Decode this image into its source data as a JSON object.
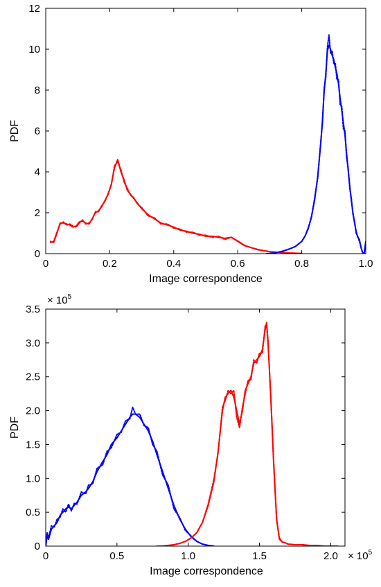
{
  "chart_data": [
    {
      "type": "line",
      "title": "",
      "xlabel": "Image correspondence",
      "ylabel": "PDF",
      "xlim": [
        0,
        1.0
      ],
      "ylim": [
        0,
        12
      ],
      "xticks": [
        0,
        0.2,
        0.4,
        0.6,
        0.8,
        1.0
      ],
      "xtick_labels": [
        "0",
        "0.2",
        "0.4",
        "0.6",
        "0.8",
        "1.0"
      ],
      "yticks": [
        0,
        2,
        4,
        6,
        8,
        10,
        12
      ],
      "ytick_labels": [
        "0",
        "2",
        "4",
        "6",
        "8",
        "10",
        "12"
      ],
      "multiplier": "",
      "grid": false,
      "series": [
        {
          "color": "#ff0000",
          "style": "solid",
          "x": [
            0.015,
            0.025,
            0.035,
            0.045,
            0.055,
            0.065,
            0.075,
            0.085,
            0.095,
            0.105,
            0.115,
            0.125,
            0.135,
            0.145,
            0.155,
            0.165,
            0.175,
            0.185,
            0.195,
            0.205,
            0.215,
            0.225,
            0.235,
            0.245,
            0.255,
            0.265,
            0.275,
            0.285,
            0.3,
            0.32,
            0.34,
            0.36,
            0.38,
            0.4,
            0.42,
            0.44,
            0.46,
            0.48,
            0.5,
            0.52,
            0.54,
            0.56,
            0.58,
            0.6,
            0.62,
            0.64,
            0.66,
            0.68,
            0.7,
            0.72,
            0.74,
            0.76,
            0.78,
            0.8
          ],
          "y": [
            0.6,
            0.55,
            1.0,
            1.5,
            1.5,
            1.45,
            1.4,
            1.3,
            1.35,
            1.55,
            1.6,
            1.5,
            1.45,
            1.7,
            2.0,
            2.1,
            2.3,
            2.6,
            2.9,
            3.4,
            4.2,
            4.6,
            4.0,
            3.6,
            3.1,
            2.9,
            2.7,
            2.5,
            2.2,
            1.9,
            1.7,
            1.5,
            1.4,
            1.3,
            1.15,
            1.1,
            1.0,
            0.95,
            0.85,
            0.85,
            0.8,
            0.75,
            0.8,
            0.6,
            0.4,
            0.3,
            0.2,
            0.15,
            0.1,
            0.07,
            0.05,
            0.03,
            0.02,
            0.01
          ]
        },
        {
          "color": "#ff0000",
          "style": "dashed",
          "x": [
            0.015,
            0.025,
            0.035,
            0.045,
            0.055,
            0.065,
            0.075,
            0.085,
            0.095,
            0.105,
            0.115,
            0.125,
            0.135,
            0.145,
            0.155,
            0.165,
            0.175,
            0.185,
            0.195,
            0.205,
            0.215,
            0.225,
            0.235,
            0.245,
            0.255,
            0.265,
            0.275,
            0.285,
            0.3,
            0.32,
            0.34,
            0.36,
            0.38,
            0.4,
            0.42,
            0.44,
            0.46,
            0.48,
            0.5,
            0.52,
            0.54,
            0.56,
            0.58,
            0.6,
            0.62,
            0.64,
            0.66,
            0.68,
            0.7,
            0.72,
            0.74,
            0.76,
            0.78,
            0.8
          ],
          "y": [
            0.55,
            0.6,
            1.05,
            1.45,
            1.55,
            1.4,
            1.45,
            1.35,
            1.3,
            1.5,
            1.65,
            1.45,
            1.5,
            1.65,
            2.05,
            2.05,
            2.35,
            2.55,
            2.95,
            3.35,
            4.3,
            4.5,
            4.1,
            3.5,
            3.2,
            2.85,
            2.75,
            2.45,
            2.25,
            1.85,
            1.75,
            1.45,
            1.45,
            1.25,
            1.2,
            1.05,
            1.05,
            0.9,
            0.9,
            0.8,
            0.85,
            0.7,
            0.8,
            0.62,
            0.42,
            0.3,
            0.22,
            0.15,
            0.1,
            0.07,
            0.05,
            0.03,
            0.02,
            0.01
          ]
        },
        {
          "color": "#0000ff",
          "style": "solid",
          "x": [
            0.69,
            0.7,
            0.72,
            0.74,
            0.76,
            0.78,
            0.8,
            0.81,
            0.82,
            0.83,
            0.84,
            0.85,
            0.86,
            0.865,
            0.87,
            0.875,
            0.88,
            0.885,
            0.89,
            0.895,
            0.9,
            0.905,
            0.91,
            0.915,
            0.92,
            0.925,
            0.93,
            0.935,
            0.94,
            0.945,
            0.95,
            0.955,
            0.96,
            0.965,
            0.97,
            0.975,
            0.98,
            0.985,
            0.99,
            0.995,
            1.0
          ],
          "y": [
            0.0,
            0.01,
            0.05,
            0.12,
            0.22,
            0.35,
            0.6,
            0.85,
            1.2,
            1.8,
            2.6,
            3.8,
            5.5,
            6.6,
            7.9,
            8.8,
            9.9,
            10.2,
            10.0,
            9.7,
            9.5,
            9.1,
            8.8,
            8.3,
            7.6,
            7.0,
            6.4,
            5.8,
            4.9,
            4.1,
            3.3,
            2.6,
            2.0,
            1.5,
            1.1,
            0.8,
            0.7,
            0.3,
            0.05,
            0.0,
            0.6
          ]
        },
        {
          "color": "#0000ff",
          "style": "dashed",
          "x": [
            0.69,
            0.7,
            0.72,
            0.74,
            0.76,
            0.78,
            0.8,
            0.81,
            0.82,
            0.83,
            0.84,
            0.85,
            0.86,
            0.865,
            0.87,
            0.875,
            0.88,
            0.885,
            0.89,
            0.895,
            0.9,
            0.905,
            0.91,
            0.915,
            0.92,
            0.925,
            0.93,
            0.935,
            0.94,
            0.945,
            0.95,
            0.955,
            0.96,
            0.965,
            0.97,
            0.975,
            0.98,
            0.985,
            0.99,
            0.995,
            1.0
          ],
          "y": [
            0.0,
            0.01,
            0.05,
            0.12,
            0.22,
            0.35,
            0.6,
            0.85,
            1.25,
            1.75,
            2.7,
            3.7,
            5.6,
            6.4,
            8.1,
            8.6,
            10.1,
            10.7,
            9.8,
            9.9,
            9.3,
            9.3,
            8.5,
            8.5,
            7.3,
            7.2,
            6.1,
            6.0,
            4.7,
            4.2,
            3.2,
            2.7,
            1.9,
            1.6,
            1.0,
            0.85,
            0.6,
            0.35,
            0.05,
            0.0,
            0.5
          ]
        }
      ]
    },
    {
      "type": "line",
      "title": "",
      "xlabel": "Image correspondence",
      "ylabel": "PDF",
      "xlim": [
        0,
        2.1
      ],
      "ylim": [
        0,
        3.5
      ],
      "xticks": [
        0,
        0.5,
        1.0,
        1.5,
        2.0
      ],
      "xtick_labels": [
        "0",
        "0.5",
        "1.0",
        "1.5",
        "2.0"
      ],
      "yticks": [
        0,
        0.5,
        1.0,
        1.5,
        2.0,
        2.5,
        3.0,
        3.5
      ],
      "ytick_labels": [
        "0",
        "0.5",
        "1.0",
        "1.5",
        "2.0",
        "2.5",
        "3.0",
        "3.5"
      ],
      "multiplier": "× 10",
      "multiplier_exp": "5",
      "grid": false,
      "series": [
        {
          "color": "#0000ff",
          "style": "solid",
          "x": [
            0.0,
            0.01,
            0.02,
            0.04,
            0.06,
            0.08,
            0.1,
            0.12,
            0.14,
            0.16,
            0.18,
            0.2,
            0.22,
            0.25,
            0.28,
            0.3,
            0.33,
            0.36,
            0.4,
            0.43,
            0.46,
            0.5,
            0.53,
            0.56,
            0.59,
            0.61,
            0.63,
            0.66,
            0.69,
            0.72,
            0.75,
            0.78,
            0.82,
            0.86,
            0.9,
            0.94,
            0.98,
            1.02,
            1.06,
            1.1,
            1.14,
            1.18
          ],
          "y": [
            0.0,
            0.15,
            0.1,
            0.25,
            0.3,
            0.35,
            0.45,
            0.5,
            0.55,
            0.58,
            0.55,
            0.6,
            0.65,
            0.75,
            0.8,
            0.85,
            0.95,
            1.1,
            1.25,
            1.35,
            1.5,
            1.6,
            1.7,
            1.8,
            1.9,
            1.95,
            1.95,
            1.9,
            1.8,
            1.7,
            1.55,
            1.35,
            1.1,
            0.85,
            0.6,
            0.4,
            0.25,
            0.14,
            0.07,
            0.03,
            0.01,
            0.0
          ]
        },
        {
          "color": "#0000ff",
          "style": "dashed",
          "x": [
            0.0,
            0.01,
            0.02,
            0.04,
            0.06,
            0.08,
            0.1,
            0.12,
            0.14,
            0.16,
            0.18,
            0.2,
            0.22,
            0.25,
            0.28,
            0.3,
            0.33,
            0.36,
            0.4,
            0.43,
            0.46,
            0.5,
            0.53,
            0.56,
            0.59,
            0.61,
            0.63,
            0.66,
            0.69,
            0.72,
            0.75,
            0.78,
            0.82,
            0.86,
            0.9,
            0.94,
            0.98,
            1.02,
            1.06,
            1.1,
            1.14,
            1.18
          ],
          "y": [
            0.0,
            0.2,
            0.12,
            0.3,
            0.28,
            0.4,
            0.42,
            0.55,
            0.5,
            0.62,
            0.52,
            0.63,
            0.62,
            0.8,
            0.77,
            0.9,
            0.92,
            1.15,
            1.2,
            1.4,
            1.45,
            1.65,
            1.68,
            1.85,
            1.88,
            2.05,
            1.95,
            1.95,
            1.78,
            1.75,
            1.5,
            1.4,
            1.05,
            0.9,
            0.55,
            0.42,
            0.23,
            0.15,
            0.07,
            0.03,
            0.01,
            0.0
          ]
        },
        {
          "color": "#ff0000",
          "style": "solid",
          "x": [
            0.78,
            0.82,
            0.86,
            0.9,
            0.94,
            0.98,
            1.02,
            1.06,
            1.1,
            1.14,
            1.18,
            1.21,
            1.24,
            1.26,
            1.28,
            1.3,
            1.32,
            1.34,
            1.36,
            1.38,
            1.4,
            1.42,
            1.44,
            1.46,
            1.48,
            1.5,
            1.52,
            1.54,
            1.55,
            1.56,
            1.58,
            1.6,
            1.62,
            1.64,
            1.66,
            1.68,
            1.7,
            1.75,
            1.8,
            1.85,
            1.9,
            1.95,
            2.0,
            2.05
          ],
          "y": [
            0.0,
            0.0,
            0.01,
            0.02,
            0.04,
            0.07,
            0.12,
            0.2,
            0.35,
            0.6,
            0.95,
            1.4,
            2.0,
            2.2,
            2.25,
            2.3,
            2.2,
            2.0,
            1.8,
            2.0,
            2.3,
            2.4,
            2.5,
            2.7,
            2.75,
            2.8,
            2.9,
            3.2,
            3.3,
            3.0,
            2.2,
            1.2,
            0.4,
            0.1,
            0.06,
            0.05,
            0.03,
            0.02,
            0.02,
            0.01,
            0.01,
            0.0,
            0.0,
            0.0
          ]
        },
        {
          "color": "#ff0000",
          "style": "dashed",
          "x": [
            0.78,
            0.82,
            0.86,
            0.9,
            0.94,
            0.98,
            1.02,
            1.06,
            1.1,
            1.14,
            1.18,
            1.21,
            1.24,
            1.26,
            1.28,
            1.3,
            1.32,
            1.34,
            1.36,
            1.38,
            1.4,
            1.42,
            1.44,
            1.46,
            1.48,
            1.5,
            1.52,
            1.54,
            1.55,
            1.56,
            1.58,
            1.6,
            1.62,
            1.64,
            1.66,
            1.68,
            1.7,
            1.75,
            1.8,
            1.85,
            1.9,
            1.95,
            2.0,
            2.05
          ],
          "y": [
            0.0,
            0.0,
            0.01,
            0.02,
            0.04,
            0.07,
            0.12,
            0.2,
            0.35,
            0.62,
            0.98,
            1.38,
            2.05,
            2.15,
            2.3,
            2.25,
            2.3,
            1.9,
            1.75,
            2.05,
            2.25,
            2.45,
            2.45,
            2.75,
            2.7,
            2.85,
            2.85,
            3.25,
            3.25,
            3.05,
            2.15,
            1.25,
            0.38,
            0.12,
            0.06,
            0.05,
            0.03,
            0.02,
            0.02,
            0.01,
            0.01,
            0.0,
            0.0,
            0.0
          ]
        }
      ]
    }
  ]
}
